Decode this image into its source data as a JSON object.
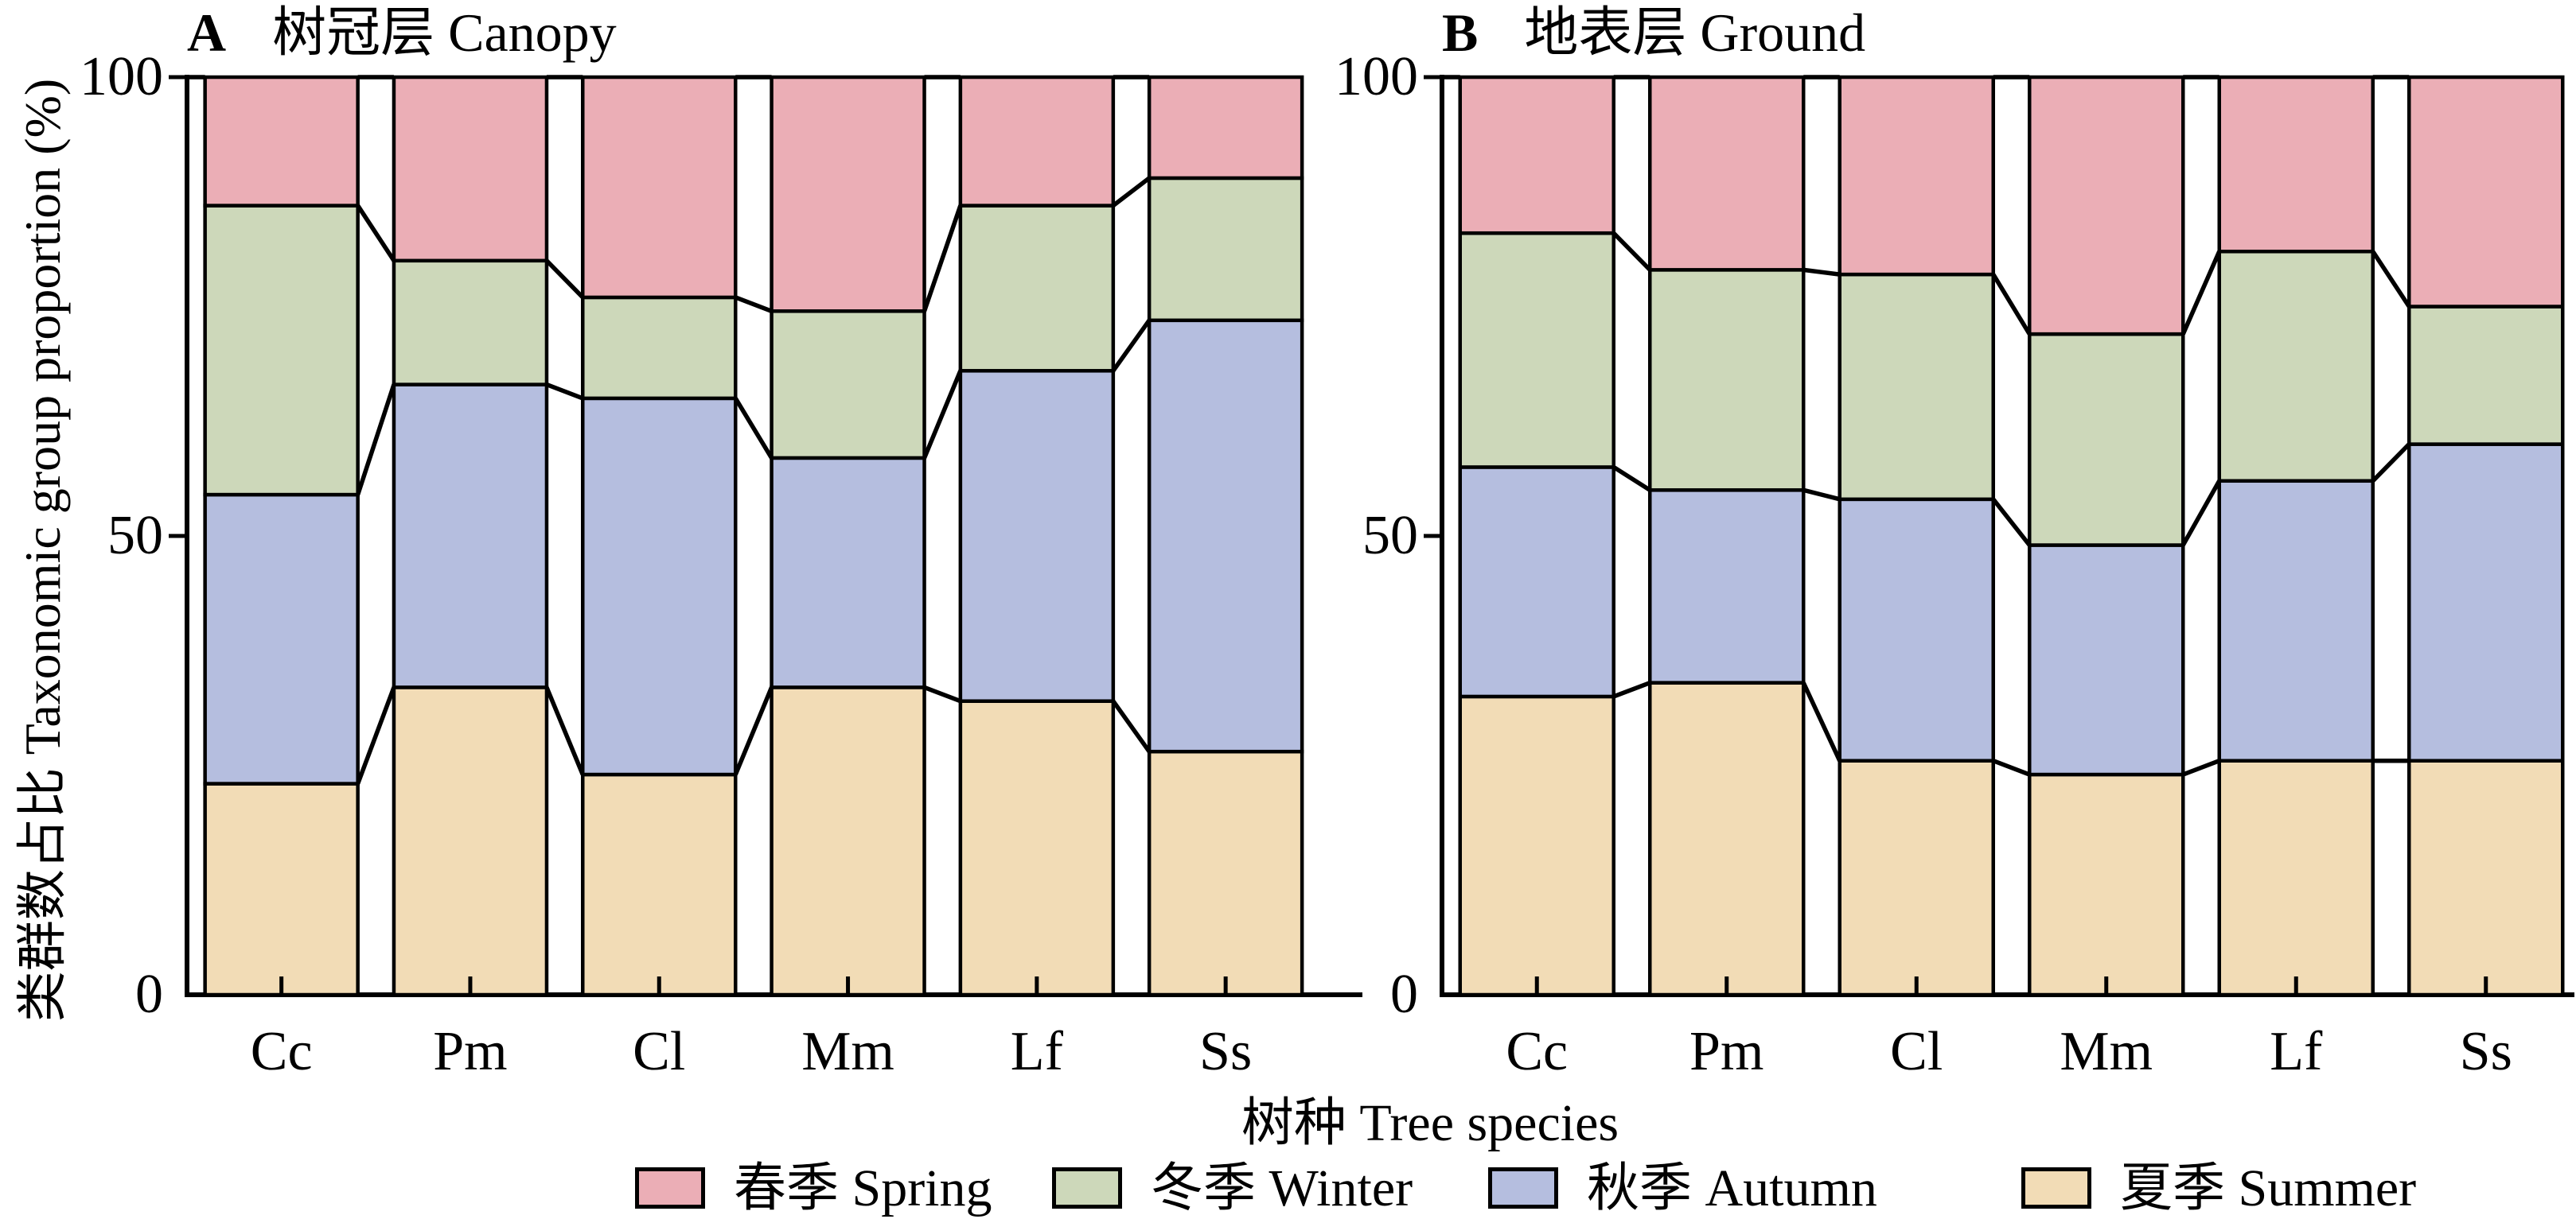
{
  "figure": {
    "y_axis": {
      "label": "类群数占比 Taxonomic group proportion (%)",
      "tick_labels": [
        "0",
        "50",
        "100"
      ]
    },
    "x_axis": {
      "label": "树种 Tree species"
    },
    "colors": {
      "spring": "#EBAEB6",
      "winter": "#CDD8BA",
      "autumn": "#B5BEDF",
      "summer": "#F2DCB6",
      "line": "#000000",
      "background": "#FFFFFF"
    },
    "legend": [
      {
        "label": "春季 Spring",
        "color_key": "spring"
      },
      {
        "label": "冬季 Winter",
        "color_key": "winter"
      },
      {
        "label": "秋季 Autumn",
        "color_key": "autumn"
      },
      {
        "label": "夏季 Summer",
        "color_key": "summer"
      }
    ]
  },
  "chart_data": [
    {
      "type": "bar",
      "stacked": true,
      "panel_label": "A",
      "title": "树冠层 Canopy",
      "categories": [
        "Cc",
        "Pm",
        "Cl",
        "Mm",
        "Lf",
        "Ss"
      ],
      "ylim": [
        0,
        100
      ],
      "yticks": [
        0,
        50,
        100
      ],
      "grid": false,
      "legend_position": "bottom",
      "series": [
        {
          "name": "夏季 Summer",
          "color_key": "summer",
          "values": [
            23,
            33.5,
            24,
            33.5,
            32,
            26.5
          ]
        },
        {
          "name": "秋季 Autumn",
          "color_key": "autumn",
          "values": [
            31.5,
            33,
            41,
            25,
            36,
            47
          ]
        },
        {
          "name": "冬季 Winter",
          "color_key": "winter",
          "values": [
            31.5,
            13.5,
            11,
            16,
            18,
            15.5
          ]
        },
        {
          "name": "春季 Spring",
          "color_key": "spring",
          "values": [
            14,
            20,
            24,
            25.5,
            14,
            11
          ]
        }
      ]
    },
    {
      "type": "bar",
      "stacked": true,
      "panel_label": "B",
      "title": "地表层 Ground",
      "categories": [
        "Cc",
        "Pm",
        "Cl",
        "Mm",
        "Lf",
        "Ss"
      ],
      "ylim": [
        0,
        100
      ],
      "yticks": [
        0,
        50,
        100
      ],
      "grid": false,
      "legend_position": "bottom",
      "series": [
        {
          "name": "夏季 Summer",
          "color_key": "summer",
          "values": [
            32.5,
            34,
            25.5,
            24,
            25.5,
            25.5
          ]
        },
        {
          "name": "秋季 Autumn",
          "color_key": "autumn",
          "values": [
            25,
            21,
            28.5,
            25,
            30.5,
            34.5
          ]
        },
        {
          "name": "冬季 Winter",
          "color_key": "winter",
          "values": [
            25.5,
            24,
            24.5,
            23,
            25,
            15
          ]
        },
        {
          "name": "春季 Spring",
          "color_key": "spring",
          "values": [
            17,
            21,
            21.5,
            28,
            19,
            25
          ]
        }
      ]
    }
  ]
}
